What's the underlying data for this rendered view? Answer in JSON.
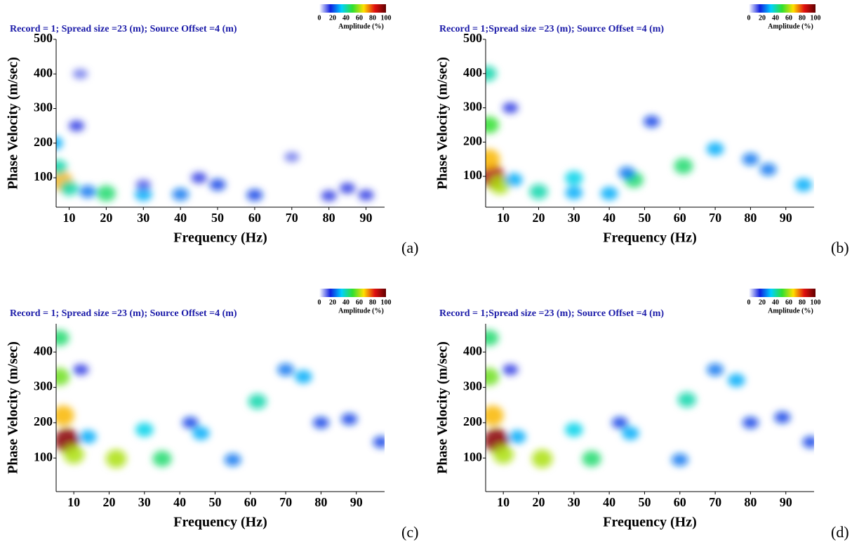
{
  "chart_data": [
    {
      "type": "heatmap",
      "title": "Record = 1; Spread size =23 (m); Source Offset =4 (m)",
      "panel_label": "(a)",
      "xlabel": "Frequency (Hz)",
      "ylabel": "Phase Velocity (m/sec)",
      "xlim": [
        6.5,
        95
      ],
      "ylim": [
        15,
        500
      ],
      "xticks": [
        10,
        20,
        30,
        40,
        50,
        60,
        70,
        80,
        90
      ],
      "yticks": [
        100,
        200,
        300,
        400,
        500
      ],
      "x": [
        8,
        7,
        6,
        10,
        15,
        20,
        30,
        40,
        60,
        80,
        12,
        13,
        50,
        70,
        45,
        85,
        30,
        90
      ],
      "y": [
        90,
        130,
        200,
        70,
        60,
        55,
        52,
        52,
        50,
        48,
        250,
        400,
        80,
        160,
        100,
        70,
        80,
        50
      ],
      "values": [
        70,
        40,
        30,
        40,
        25,
        45,
        30,
        25,
        20,
        15,
        15,
        10,
        20,
        10,
        15,
        15,
        12,
        15
      ],
      "colorbar": {
        "label": "Amplitude (%)",
        "lim": [
          0,
          100
        ],
        "ticks": [
          0,
          20,
          40,
          60,
          80,
          100
        ],
        "colors": [
          "#ffffff",
          "#1020e0",
          "#00d0ff",
          "#30e030",
          "#ffe000",
          "#e01010",
          "#600000"
        ]
      }
    },
    {
      "type": "heatmap",
      "title": "Record = 1;Spread size =23 (m); Source Offset =4 (m)",
      "panel_label": "(b)",
      "xlabel": "Frequency (Hz)",
      "ylabel": "Phase Velocity (m/sec)",
      "xlim": [
        5,
        98
      ],
      "ylim": [
        10,
        500
      ],
      "xticks": [
        10,
        20,
        30,
        40,
        50,
        60,
        70,
        80,
        90
      ],
      "yticks": [
        100,
        200,
        300,
        400,
        500
      ],
      "x": [
        7,
        6,
        6,
        5.5,
        9,
        13,
        20,
        30,
        40,
        47,
        61,
        70,
        80,
        85,
        95,
        12,
        52,
        30,
        45
      ],
      "y": [
        100,
        150,
        250,
        400,
        75,
        90,
        55,
        95,
        50,
        90,
        130,
        180,
        150,
        120,
        75,
        300,
        260,
        52,
        110
      ],
      "values": [
        90,
        70,
        50,
        40,
        60,
        30,
        40,
        35,
        30,
        45,
        45,
        30,
        25,
        25,
        30,
        15,
        20,
        30,
        25
      ],
      "colorbar": {
        "label": "Amplitude (%)",
        "lim": [
          0,
          100
        ],
        "ticks": [
          0,
          20,
          40,
          60,
          80,
          100
        ],
        "colors": [
          "#ffffff",
          "#1020e0",
          "#00d0ff",
          "#30e030",
          "#ffe000",
          "#e01010",
          "#600000"
        ]
      }
    },
    {
      "type": "heatmap",
      "title": "Record = 1; Spread size =23 (m); Source Offset =4 (m)",
      "panel_label": "(c)",
      "xlabel": "Frequency (Hz)",
      "ylabel": "Phase Velocity (m/sec)",
      "xlim": [
        5,
        98
      ],
      "ylim": [
        5,
        480
      ],
      "xticks": [
        10,
        20,
        30,
        40,
        50,
        60,
        70,
        80,
        90
      ],
      "yticks": [
        100,
        200,
        300,
        400
      ],
      "x": [
        8,
        7,
        6,
        6,
        10,
        14,
        22,
        30,
        35,
        46,
        43,
        55,
        62,
        70,
        75,
        80,
        88,
        12,
        97
      ],
      "y": [
        150,
        220,
        330,
        440,
        110,
        160,
        98,
        180,
        98,
        170,
        200,
        95,
        260,
        350,
        330,
        200,
        210,
        350,
        145
      ],
      "values": [
        95,
        70,
        55,
        45,
        60,
        30,
        60,
        35,
        45,
        30,
        20,
        25,
        40,
        25,
        30,
        20,
        20,
        15,
        20
      ],
      "colorbar": {
        "label": "Amplitude (%)",
        "lim": [
          0,
          100
        ],
        "ticks": [
          0,
          20,
          40,
          60,
          80,
          100
        ],
        "colors": [
          "#ffffff",
          "#1020e0",
          "#00d0ff",
          "#30e030",
          "#ffe000",
          "#e01010",
          "#600000"
        ]
      }
    },
    {
      "type": "heatmap",
      "title": "Record = 1;Spread size =23 (m); Source Offset =4 (m)",
      "panel_label": "(d)",
      "xlabel": "Frequency (Hz)",
      "ylabel": "Phase Velocity (m/sec)",
      "xlim": [
        5,
        98
      ],
      "ylim": [
        5,
        480
      ],
      "xticks": [
        10,
        20,
        30,
        40,
        50,
        60,
        70,
        80,
        90
      ],
      "yticks": [
        100,
        200,
        300,
        400
      ],
      "x": [
        8,
        7,
        6,
        6,
        10,
        14,
        21,
        30,
        35,
        46,
        43,
        60,
        62,
        70,
        76,
        80,
        89,
        12,
        97
      ],
      "y": [
        150,
        220,
        330,
        440,
        110,
        160,
        98,
        180,
        98,
        170,
        200,
        95,
        265,
        350,
        320,
        200,
        215,
        350,
        145
      ],
      "values": [
        95,
        70,
        55,
        45,
        60,
        30,
        60,
        35,
        45,
        30,
        20,
        25,
        40,
        25,
        30,
        20,
        20,
        15,
        20
      ],
      "colorbar": {
        "label": "Amplitude (%)",
        "lim": [
          0,
          100
        ],
        "ticks": [
          0,
          20,
          40,
          60,
          80,
          100
        ],
        "colors": [
          "#ffffff",
          "#1020e0",
          "#00d0ff",
          "#30e030",
          "#ffe000",
          "#e01010",
          "#600000"
        ]
      }
    }
  ]
}
